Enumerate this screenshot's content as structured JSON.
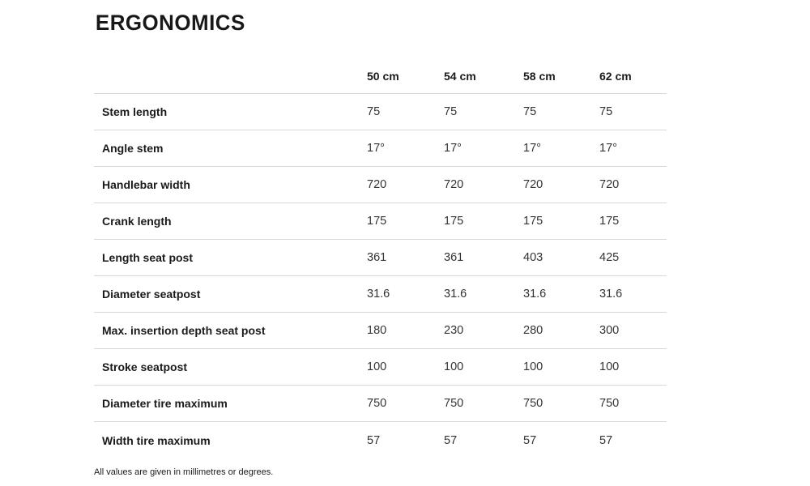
{
  "section": {
    "title": "ERGONOMICS",
    "footnote": "All values are given in millimetres or degrees."
  },
  "theme": {
    "text_color": "#1a1a1a",
    "value_color": "#333333",
    "divider_color": "#d8d8d8",
    "background": "#ffffff"
  },
  "table": {
    "columns": [
      "50 cm",
      "54 cm",
      "58 cm",
      "62 cm"
    ],
    "rows": [
      {
        "label": "Stem length",
        "values": [
          "75",
          "75",
          "75",
          "75"
        ]
      },
      {
        "label": "Angle stem",
        "values": [
          "17°",
          "17°",
          "17°",
          "17°"
        ]
      },
      {
        "label": "Handlebar width",
        "values": [
          "720",
          "720",
          "720",
          "720"
        ]
      },
      {
        "label": "Crank length",
        "values": [
          "175",
          "175",
          "175",
          "175"
        ]
      },
      {
        "label": "Length seat post",
        "values": [
          "361",
          "361",
          "403",
          "425"
        ]
      },
      {
        "label": "Diameter seatpost",
        "values": [
          "31.6",
          "31.6",
          "31.6",
          "31.6"
        ]
      },
      {
        "label": "Max. insertion depth seat post",
        "values": [
          "180",
          "230",
          "280",
          "300"
        ]
      },
      {
        "label": "Stroke seatpost",
        "values": [
          "100",
          "100",
          "100",
          "100"
        ]
      },
      {
        "label": "Diameter tire maximum",
        "values": [
          "750",
          "750",
          "750",
          "750"
        ]
      },
      {
        "label": "Width tire maximum",
        "values": [
          "57",
          "57",
          "57",
          "57"
        ]
      }
    ]
  }
}
